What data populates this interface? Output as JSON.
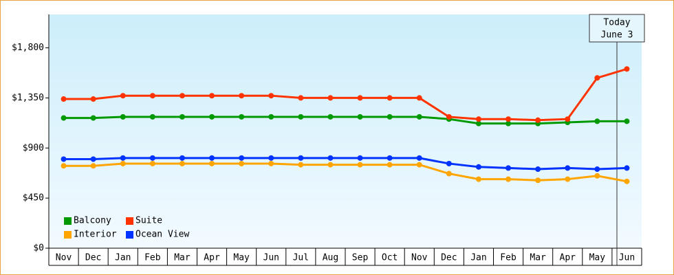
{
  "chart_data": {
    "type": "line",
    "categories": [
      "Nov",
      "Dec",
      "Jan",
      "Feb",
      "Mar",
      "Apr",
      "May",
      "Jun",
      "Jul",
      "Aug",
      "Sep",
      "Oct",
      "Nov",
      "Dec",
      "Jan",
      "Feb",
      "Mar",
      "Apr",
      "May",
      "Jun"
    ],
    "series": [
      {
        "name": "Balcony",
        "color": "#009900",
        "values": [
          1170,
          1170,
          1180,
          1180,
          1180,
          1180,
          1180,
          1180,
          1180,
          1180,
          1180,
          1180,
          1180,
          1160,
          1120,
          1120,
          1120,
          1130,
          1140,
          1140
        ]
      },
      {
        "name": "Suite",
        "color": "#ff3300",
        "values": [
          1340,
          1340,
          1370,
          1370,
          1370,
          1370,
          1370,
          1370,
          1350,
          1350,
          1350,
          1350,
          1350,
          1180,
          1160,
          1160,
          1150,
          1160,
          1530,
          1610
        ]
      },
      {
        "name": "Interior",
        "color": "#ffa500",
        "values": [
          740,
          740,
          760,
          760,
          760,
          760,
          760,
          760,
          750,
          750,
          750,
          750,
          750,
          670,
          620,
          620,
          610,
          620,
          650,
          600
        ]
      },
      {
        "name": "Ocean View",
        "color": "#0033ff",
        "values": [
          800,
          800,
          810,
          810,
          810,
          810,
          810,
          810,
          810,
          810,
          810,
          810,
          810,
          760,
          730,
          720,
          710,
          720,
          710,
          720
        ]
      }
    ],
    "ylim": [
      0,
      2100
    ],
    "yticks": [
      {
        "value": 0,
        "label": "$0"
      },
      {
        "value": 450,
        "label": "$450"
      },
      {
        "value": 900,
        "label": "$900"
      },
      {
        "value": 1350,
        "label": "$1,350"
      },
      {
        "value": 1800,
        "label": "$1,800"
      }
    ],
    "annotations": [
      "Today",
      "June 3"
    ],
    "legend": "lower left"
  }
}
